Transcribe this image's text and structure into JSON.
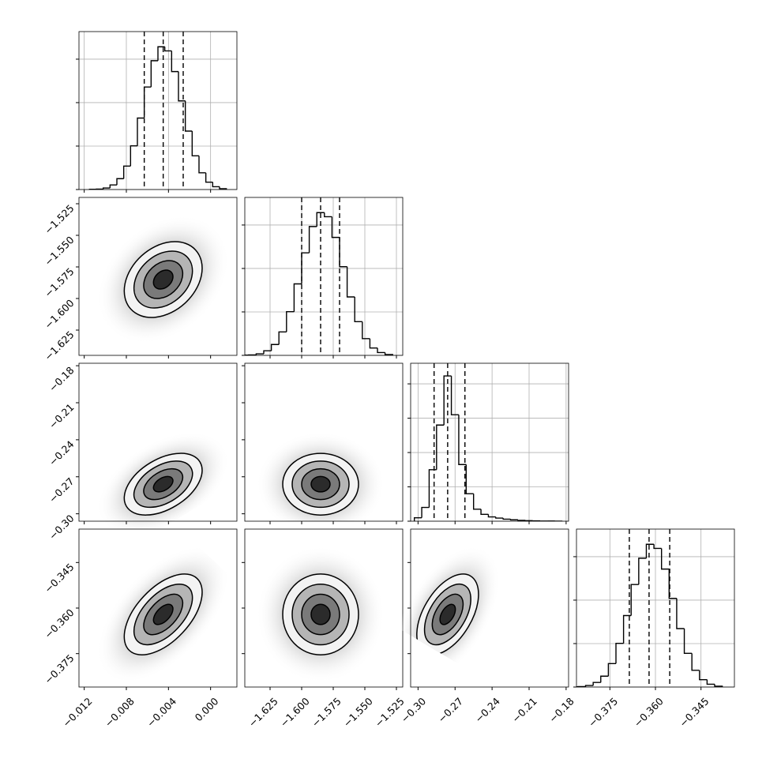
{
  "chart_data": {
    "type": "corner",
    "params": [
      {
        "lim": [
          -0.0125,
          0.0025
        ],
        "ticks": [
          {
            "value": -0.012,
            "label": "−0.012"
          },
          {
            "value": -0.008,
            "label": "−0.008"
          },
          {
            "value": -0.004,
            "label": "−0.004"
          },
          {
            "value": 0,
            "label": "0.000"
          }
        ],
        "bins": [
          -0.0115,
          -0.01085,
          -0.0102,
          -0.00955,
          -0.0089,
          -0.00825,
          -0.0076,
          -0.00695,
          -0.0063,
          -0.00565,
          -0.005,
          -0.00435,
          -0.0037,
          -0.00305,
          -0.0024,
          -0.00175,
          -0.0011,
          -0.00045,
          0.0002,
          0.00085,
          0.0015
        ],
        "counts": [
          1,
          2,
          7,
          21,
          50,
          108,
          201,
          329,
          472,
          593,
          657,
          638,
          543,
          408,
          269,
          155,
          77,
          34,
          13,
          4
        ],
        "quantiles": [
          -0.0063,
          -0.0045,
          -0.0026
        ],
        "hist_ylim": [
          0,
          727
        ],
        "hist_yticks": [
          0,
          200,
          400,
          600
        ]
      },
      {
        "lim": [
          -1.645,
          -1.52
        ],
        "ticks": [
          {
            "value": -1.625,
            "label": "−1.625"
          },
          {
            "value": -1.6,
            "label": "−1.600"
          },
          {
            "value": -1.575,
            "label": "−1.575"
          },
          {
            "value": -1.55,
            "label": "−1.550"
          },
          {
            "value": -1.525,
            "label": "−1.525"
          }
        ],
        "bins": [
          -1.648,
          -1.642,
          -1.636,
          -1.63,
          -1.624,
          -1.618,
          -1.612,
          -1.606,
          -1.6,
          -1.594,
          -1.588,
          -1.582,
          -1.576,
          -1.57,
          -1.564,
          -1.558,
          -1.552,
          -1.546,
          -1.54,
          -1.534,
          -1.528
        ],
        "counts": [
          1,
          2,
          7,
          21,
          50,
          108,
          201,
          329,
          472,
          593,
          657,
          638,
          543,
          408,
          269,
          155,
          77,
          34,
          13,
          4
        ],
        "quantiles": [
          -1.6,
          -1.585,
          -1.57
        ],
        "hist_ylim": [
          0,
          727
        ],
        "hist_yticks": [
          0,
          200,
          400,
          600
        ]
      },
      {
        "lim": [
          -0.306,
          -0.178
        ],
        "ticks": [
          {
            "value": -0.3,
            "label": "−0.30"
          },
          {
            "value": -0.27,
            "label": "−0.27"
          },
          {
            "value": -0.24,
            "label": "−0.24"
          },
          {
            "value": -0.21,
            "label": "−0.21"
          },
          {
            "value": -0.18,
            "label": "−0.18"
          }
        ],
        "bins": [
          -0.303,
          -0.297,
          -0.291,
          -0.285,
          -0.279,
          -0.273,
          -0.267,
          -0.261,
          -0.255,
          -0.249,
          -0.243,
          -0.237,
          -0.231,
          -0.225,
          -0.219,
          -0.213,
          -0.207,
          -0.201,
          -0.195,
          -0.189,
          -0.183
        ],
        "counts": [
          20,
          80,
          300,
          560,
          846,
          620,
          330,
          160,
          70,
          40,
          25,
          18,
          12,
          8,
          5,
          3,
          2,
          1,
          1,
          0
        ],
        "quantiles": [
          -0.287,
          -0.276,
          -0.262
        ],
        "hist_ylim": [
          0,
          920
        ],
        "hist_yticks": [
          0,
          200,
          400,
          600,
          800
        ]
      },
      {
        "lim": [
          -0.386,
          -0.334
        ],
        "ticks": [
          {
            "value": -0.375,
            "label": "−0.375"
          },
          {
            "value": -0.36,
            "label": "−0.360"
          },
          {
            "value": -0.345,
            "label": "−0.345"
          }
        ],
        "bins": [
          -0.388,
          -0.3855,
          -0.383,
          -0.3805,
          -0.378,
          -0.3755,
          -0.373,
          -0.3705,
          -0.368,
          -0.3655,
          -0.363,
          -0.3605,
          -0.358,
          -0.3555,
          -0.353,
          -0.3505,
          -0.348,
          -0.3455,
          -0.343,
          -0.3405,
          -0.338
        ],
        "counts": [
          1,
          2,
          7,
          21,
          50,
          108,
          201,
          329,
          472,
          593,
          657,
          638,
          543,
          408,
          269,
          155,
          77,
          34,
          13,
          4
        ],
        "quantiles": [
          -0.3686,
          -0.3621,
          -0.3553
        ],
        "hist_ylim": [
          0,
          727
        ],
        "hist_yticks": [
          0,
          200,
          400,
          600
        ]
      }
    ],
    "correlations": [
      [
        0.3
      ],
      [
        0.45,
        0.0
      ],
      [
        0.55,
        0.0,
        0.5
      ]
    ],
    "contour_levels": [
      0.5,
      1,
      1.5,
      2
    ],
    "grid": true
  }
}
